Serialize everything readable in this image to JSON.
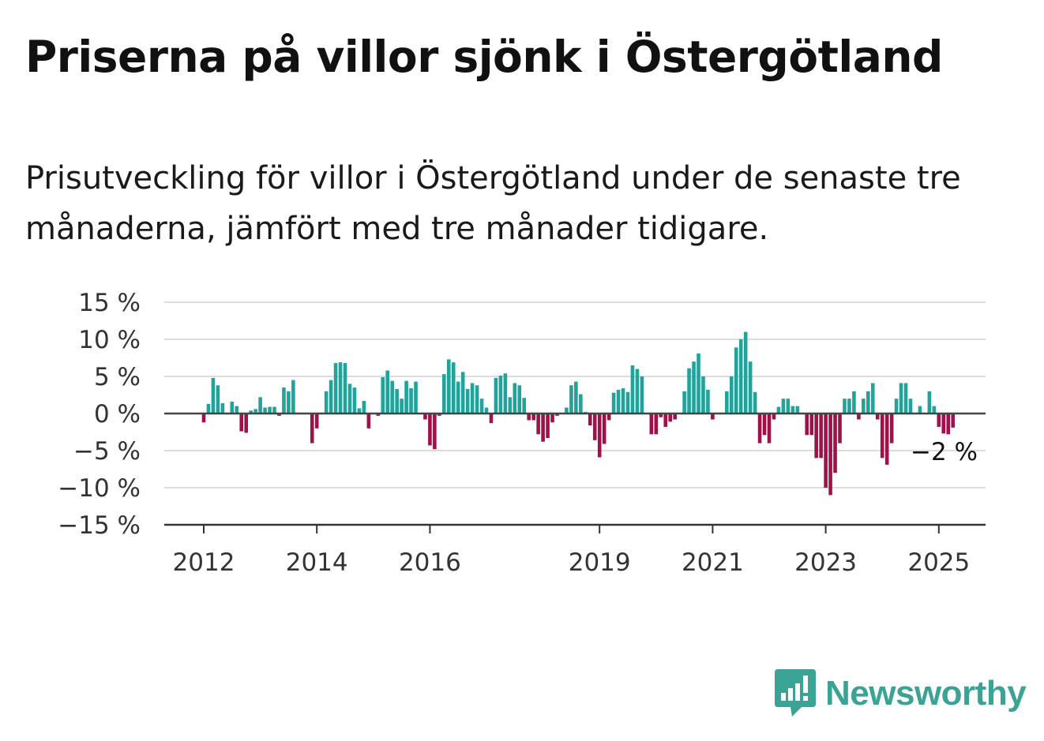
{
  "header": {
    "title": "Priserna på villor sjönk i Östergötland",
    "subtitle": "Prisutveckling för villor i Östergötland under de senaste tre månaderna, jämfört med tre månader tidigare."
  },
  "brand": {
    "name": "Newsworthy",
    "icon": "newsworthy-logo-icon",
    "color": "#3aa396"
  },
  "chart_data": {
    "type": "bar",
    "start": "2012-01",
    "frequency": "monthly",
    "x_tick_labels": [
      "2012",
      "2014",
      "2016",
      "2019",
      "2021",
      "2023",
      "2025"
    ],
    "y_tick_labels": [
      "15 %",
      "10 %",
      "5 %",
      "0 %",
      "−5 %",
      "−10 %",
      "−15 %"
    ],
    "ylim": [
      -15,
      15
    ],
    "grid": true,
    "colors": {
      "positive": "#1fa39a",
      "negative": "#a0104a"
    },
    "last_value_label": "−2 %",
    "values": [
      -1.2,
      1.3,
      4.8,
      3.8,
      1.4,
      0,
      1.6,
      1.0,
      -2.4,
      -2.6,
      0.4,
      0.6,
      2.2,
      0.8,
      0.9,
      0.9,
      -0.3,
      3.5,
      3.0,
      4.5,
      0,
      0,
      0,
      -4.0,
      -2.0,
      0,
      3.0,
      4.5,
      6.8,
      6.9,
      6.8,
      4.0,
      3.5,
      0.7,
      1.7,
      -2.0,
      0,
      -0.3,
      4.9,
      5.8,
      4.4,
      3.3,
      2.0,
      4.4,
      3.4,
      4.3,
      0,
      -0.8,
      -4.3,
      -4.8,
      -0.3,
      5.3,
      7.3,
      6.9,
      4.3,
      5.6,
      3.3,
      4.1,
      3.8,
      2.0,
      0.8,
      -1.3,
      4.8,
      5.1,
      5.4,
      2.2,
      4.1,
      3.8,
      2.1,
      -0.9,
      -0.9,
      -2.8,
      -3.8,
      -3.3,
      -1.2,
      -0.3,
      0,
      0.8,
      3.8,
      4.3,
      2.6,
      0.2,
      -1.6,
      -3.6,
      -5.9,
      -4.1,
      -0.9,
      2.8,
      3.2,
      3.4,
      2.9,
      6.5,
      6.0,
      5.0,
      0,
      -2.8,
      -2.8,
      -0.5,
      -1.8,
      -1.1,
      -0.8,
      0,
      3.0,
      6.1,
      7.0,
      8.1,
      5.0,
      3.2,
      -0.8,
      0,
      0,
      3.0,
      5.0,
      8.9,
      10.0,
      11.0,
      7.0,
      2.9,
      -4.0,
      -2.9,
      -4.0,
      -0.8,
      0.9,
      2.0,
      2.0,
      1.0,
      1.0,
      0,
      -2.9,
      -2.9,
      -6.0,
      -6.0,
      -10.0,
      -11.0,
      -8.0,
      -4.0,
      2.0,
      2.0,
      3.0,
      -0.8,
      2.0,
      3.0,
      4.1,
      -0.8,
      -6.0,
      -6.9,
      -4.0,
      2.0,
      4.1,
      4.1,
      2.0,
      0,
      1.0,
      0,
      3.0,
      1.0,
      -1.8,
      -2.7,
      -2.8,
      -1.9
    ]
  }
}
